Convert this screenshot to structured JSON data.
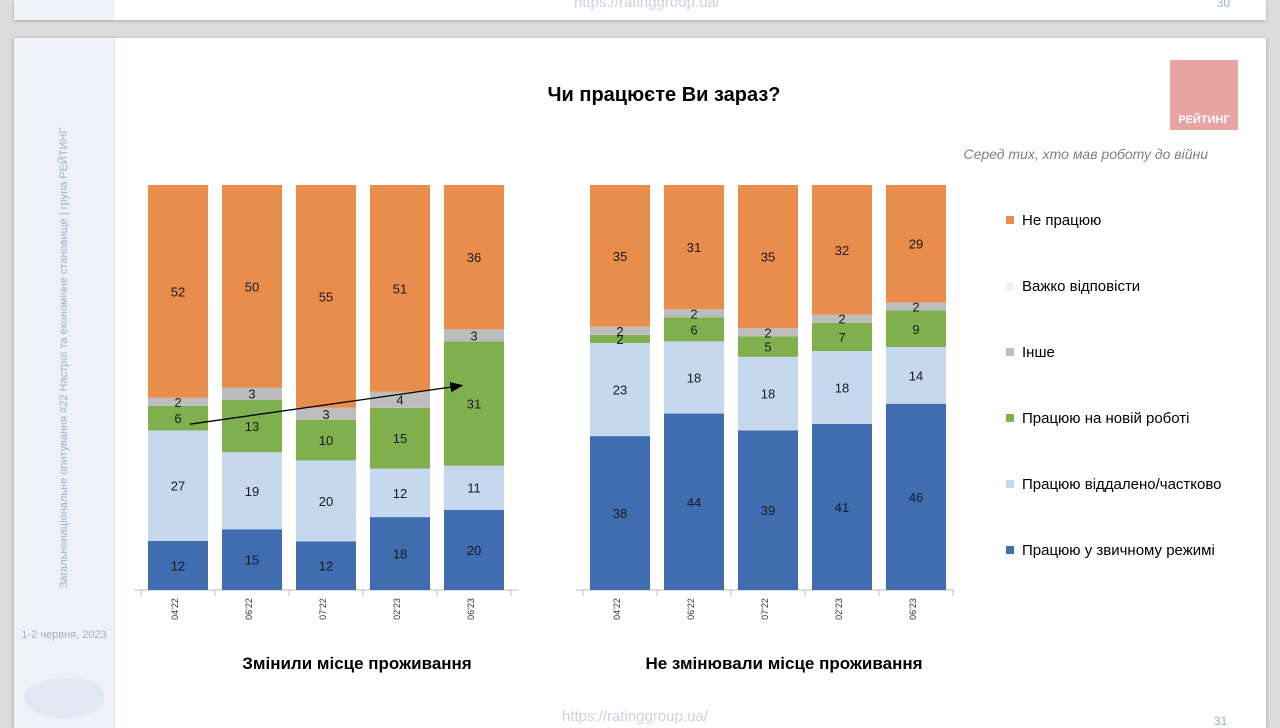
{
  "prev_slide": {
    "url": "https://ratinggroup.ua/",
    "page_number": "30"
  },
  "sidebar": {
    "survey_title": "Загальнонаціональне опитування #22 Настрої та економічне становище | група РЕЙТИНГ",
    "date": "1-2 червня, 2023"
  },
  "footer": {
    "url": "https://ratinggroup.ua/",
    "page_number": "31"
  },
  "logo_text": "РЕЙТИНГ",
  "colors": {
    "not_working": "#E98D4C",
    "hard_to_say": "#F2F2F2",
    "other": "#BDBDBD",
    "new_job": "#7FB04D",
    "remote": "#C6D8EE",
    "regular": "#3F6DB0",
    "arrow": "#000000"
  },
  "chart_data": {
    "type": "bar",
    "stacked": true,
    "title": "Чи працюєте Ви зараз?",
    "subtitle": "Серед тих, хто мав роботу до війни",
    "ylim": [
      0,
      100
    ],
    "legend_position": "right",
    "series_order_bottom_to_top": [
      "Працюю у звичному режимі",
      "Працюю віддалено/частково",
      "Працюю на новій роботі",
      "Інше",
      "Важко відповісти",
      "Не працюю"
    ],
    "legend_order": [
      "Не працюю",
      "Важко відповісти",
      "Інше",
      "Працюю на новій роботі",
      "Працюю віддалено/частково",
      "Працюю у звичному режимі"
    ],
    "groups": [
      {
        "name": "Змінили місце проживання",
        "categories": [
          "04'22",
          "06'22",
          "07'22",
          "02'23",
          "06'23"
        ],
        "series": [
          {
            "name": "Працюю у звичному режимі",
            "values": [
              12,
              15,
              12,
              18,
              20
            ]
          },
          {
            "name": "Працюю віддалено/частково",
            "values": [
              27,
              19,
              20,
              12,
              11
            ]
          },
          {
            "name": "Працюю на новій роботі",
            "values": [
              6,
              13,
              10,
              15,
              31
            ]
          },
          {
            "name": "Інше",
            "values": [
              2,
              3,
              3,
              4,
              3
            ]
          },
          {
            "name": "Важко відповісти",
            "values": [
              null,
              null,
              null,
              null,
              null
            ]
          },
          {
            "name": "Не працюю",
            "values": [
              52,
              50,
              55,
              51,
              36
            ]
          }
        ],
        "trend_arrow": {
          "from_category": "04'22",
          "to_category": "06'23",
          "series": "Працюю на новій роботі"
        }
      },
      {
        "name": "Не змінювали місце проживання",
        "categories": [
          "04'22",
          "06'22",
          "07'22",
          "02'23",
          "06'23"
        ],
        "series": [
          {
            "name": "Працюю у звичному режимі",
            "values": [
              38,
              44,
              39,
              41,
              46
            ]
          },
          {
            "name": "Працюю віддалено/частково",
            "values": [
              23,
              18,
              18,
              18,
              14
            ]
          },
          {
            "name": "Працюю на новій роботі",
            "values": [
              2,
              6,
              5,
              7,
              9
            ]
          },
          {
            "name": "Інше",
            "values": [
              2,
              2,
              2,
              2,
              2
            ]
          },
          {
            "name": "Важко відповісти",
            "values": [
              null,
              null,
              null,
              null,
              null
            ]
          },
          {
            "name": "Не працюю",
            "values": [
              35,
              31,
              35,
              32,
              29
            ]
          }
        ]
      }
    ]
  }
}
